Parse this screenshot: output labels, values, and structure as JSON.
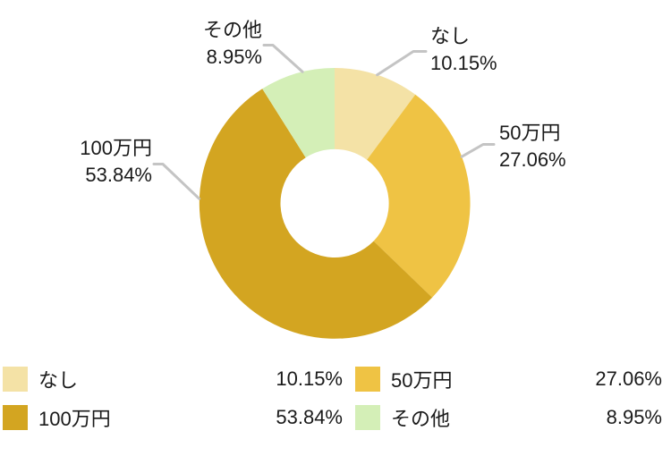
{
  "chart_data": {
    "type": "pie",
    "subtype": "donut",
    "title": "",
    "categories": [
      "なし",
      "50万円",
      "100万円",
      "その他"
    ],
    "values": [
      10.15,
      27.06,
      53.84,
      8.95
    ],
    "labels_display": [
      "10.15%",
      "27.06%",
      "53.84%",
      "8.95%"
    ],
    "colors": [
      "#f4e2a6",
      "#efc344",
      "#d3a521",
      "#d4efb7"
    ],
    "leader_line_color": "#c4c4c4",
    "start_angle_deg": 0,
    "direction": "clockwise",
    "hole_ratio": 0.4,
    "grid": false,
    "legend_position": "bottom"
  },
  "legend": {
    "items": [
      {
        "label": "なし",
        "value": "10.15%"
      },
      {
        "label": "50万円",
        "value": "27.06%"
      },
      {
        "label": "100万円",
        "value": "53.84%"
      },
      {
        "label": "その他",
        "value": "8.95%"
      }
    ]
  }
}
